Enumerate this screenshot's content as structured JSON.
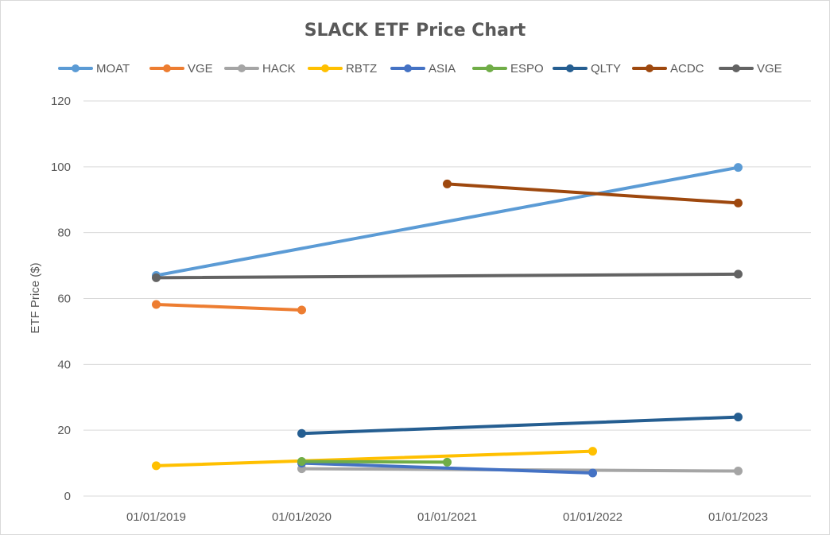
{
  "chart_data": {
    "type": "line",
    "title": "SLACK ETF Price Chart",
    "ylabel": "ETF Price ($)",
    "xlabel": "",
    "categories": [
      "01/01/2019",
      "01/01/2020",
      "01/01/2021",
      "01/01/2022",
      "01/01/2023"
    ],
    "ylim": [
      0,
      120
    ],
    "yticks": [
      0,
      20,
      40,
      60,
      80,
      100,
      120
    ],
    "grid": true,
    "legend_position": "top",
    "series": [
      {
        "name": "MOAT",
        "color": "#5b9bd5",
        "points": [
          [
            0,
            67.0
          ],
          [
            4,
            99.8
          ]
        ]
      },
      {
        "name": "VGE",
        "color": "#ed7d31",
        "points": [
          [
            0,
            58.2
          ],
          [
            1,
            56.5
          ]
        ]
      },
      {
        "name": "HACK",
        "color": "#a5a5a5",
        "points": [
          [
            1,
            8.3
          ],
          [
            4,
            7.6
          ]
        ]
      },
      {
        "name": "RBTZ",
        "color": "#ffc000",
        "points": [
          [
            0,
            9.2
          ],
          [
            3,
            13.6
          ]
        ]
      },
      {
        "name": "ASIA",
        "color": "#4472c4",
        "points": [
          [
            1,
            10.0
          ],
          [
            3,
            7.0
          ]
        ]
      },
      {
        "name": "ESPO",
        "color": "#70ad47",
        "points": [
          [
            1,
            10.5
          ],
          [
            2,
            10.3
          ]
        ]
      },
      {
        "name": "QLTY",
        "color": "#255e91",
        "points": [
          [
            1,
            19.0
          ],
          [
            4,
            24.0
          ]
        ]
      },
      {
        "name": "ACDC",
        "color": "#9e480e",
        "points": [
          [
            2,
            94.8
          ],
          [
            4,
            89.0
          ]
        ]
      },
      {
        "name": "VGE",
        "color": "#636363",
        "points": [
          [
            0,
            66.3
          ],
          [
            4,
            67.4
          ]
        ]
      }
    ]
  }
}
